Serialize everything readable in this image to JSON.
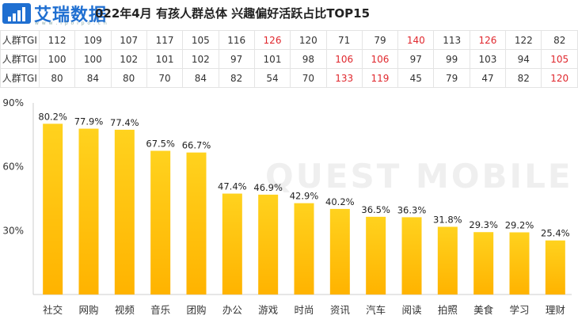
{
  "logo": {
    "text": "艾瑞数据",
    "sub": "w w w . i p o i p o . c n"
  },
  "title": "022年4月 有孩人群总体 兴趣偏好活跃占比TOP15",
  "watermark": "QUEST MOBILE",
  "colors": {
    "bar_top": "#FFD21E",
    "bar_bottom": "#FFB300",
    "red": "#E0282E"
  },
  "tgi_table": {
    "rows": [
      {
        "label": "人群TGI",
        "values": [
          "112",
          "109",
          "107",
          "117",
          "105",
          "116",
          "126",
          "120",
          "71",
          "79",
          "140",
          "113",
          "126",
          "122",
          "82"
        ],
        "red": [
          false,
          false,
          false,
          false,
          false,
          false,
          true,
          false,
          false,
          false,
          true,
          false,
          true,
          false,
          false
        ]
      },
      {
        "label": "人群TGI",
        "values": [
          "100",
          "100",
          "102",
          "101",
          "102",
          "97",
          "101",
          "98",
          "106",
          "106",
          "97",
          "99",
          "103",
          "94",
          "105"
        ],
        "red": [
          false,
          false,
          false,
          false,
          false,
          false,
          false,
          false,
          true,
          true,
          false,
          false,
          false,
          false,
          true
        ]
      },
      {
        "label": "人群TGI",
        "values": [
          "80",
          "84",
          "80",
          "70",
          "84",
          "82",
          "54",
          "70",
          "133",
          "119",
          "45",
          "79",
          "47",
          "82",
          "120"
        ],
        "red": [
          false,
          false,
          false,
          false,
          false,
          false,
          false,
          false,
          true,
          true,
          false,
          false,
          false,
          false,
          true
        ]
      }
    ]
  },
  "chart_data": {
    "type": "bar",
    "categories": [
      "社交",
      "网购",
      "视频",
      "音乐",
      "团购",
      "办公",
      "游戏",
      "时尚",
      "资讯",
      "汽车",
      "阅读",
      "拍照",
      "美食",
      "学习",
      "理财"
    ],
    "values": [
      80.2,
      77.9,
      77.4,
      67.5,
      66.7,
      47.4,
      46.9,
      42.9,
      40.2,
      36.5,
      36.3,
      31.8,
      29.3,
      29.2,
      25.4
    ],
    "value_labels": [
      "80.2%",
      "77.9%",
      "77.4%",
      "67.5%",
      "66.7%",
      "47.4%",
      "46.9%",
      "42.9%",
      "40.2%",
      "36.5%",
      "36.3%",
      "31.8%",
      "29.3%",
      "29.2%",
      "25.4%"
    ],
    "yticks": [
      "90%",
      "60%",
      "30%"
    ],
    "ytick_values": [
      90,
      60,
      30
    ],
    "ylim": [
      0,
      90
    ]
  }
}
